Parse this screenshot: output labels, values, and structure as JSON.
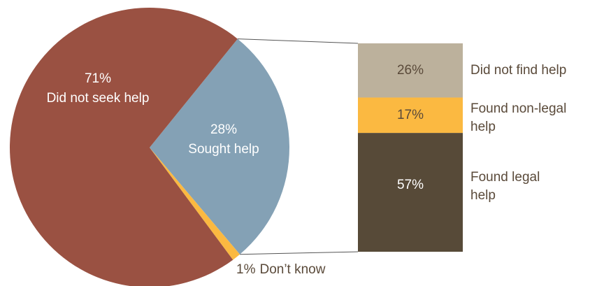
{
  "chart_data": [
    {
      "type": "pie",
      "categories": [
        "Sought help",
        "Don’t know",
        "Did not seek help"
      ],
      "values": [
        28,
        1,
        71
      ],
      "value_labels": [
        "28%",
        "1%",
        "71%"
      ],
      "colors": [
        "#84a1b5",
        "#fbb941",
        "#9a5142"
      ]
    },
    {
      "type": "bar",
      "categories": [
        "Did not find help",
        "Found non-legal help",
        "Found legal help"
      ],
      "values": [
        26,
        17,
        57
      ],
      "value_labels": [
        "26%",
        "17%",
        "57%"
      ],
      "colors": [
        "#bcb19c",
        "#fbb941",
        "#574a38"
      ]
    }
  ]
}
